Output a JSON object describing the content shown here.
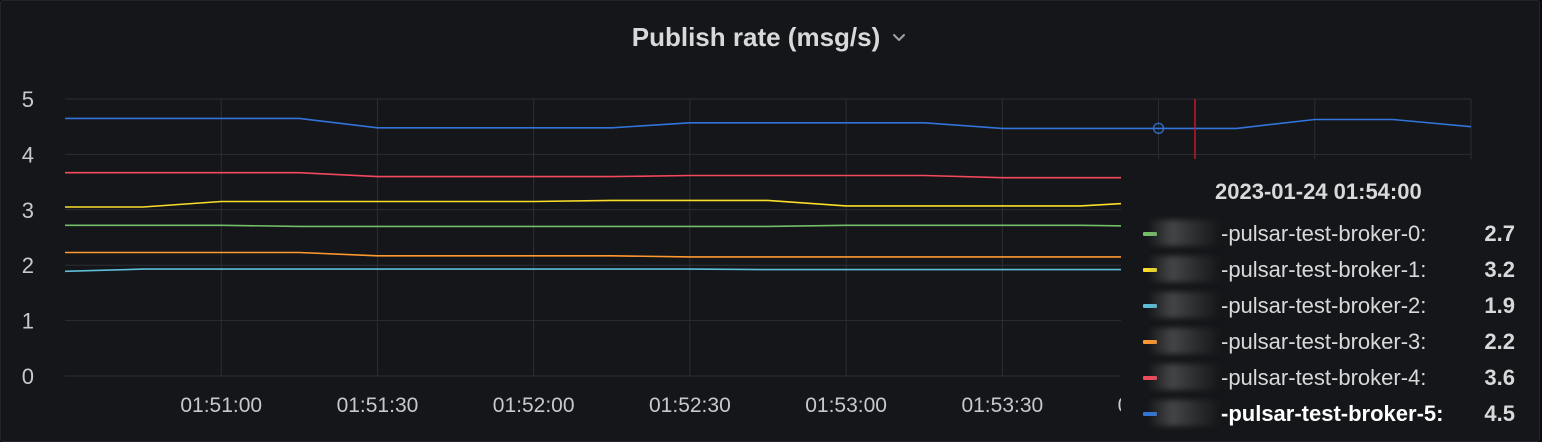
{
  "panel": {
    "title": "Publish rate (msg/s)"
  },
  "chart_data": {
    "type": "line",
    "title": "Publish rate (msg/s)",
    "ylim": [
      0,
      5
    ],
    "yticks": [
      "0",
      "1",
      "2",
      "3",
      "4",
      "5"
    ],
    "xlim": [
      "01:50:30",
      "01:55:00"
    ],
    "xtick_labels": [
      "01:51:00",
      "01:51:30",
      "01:52:00",
      "01:52:30",
      "01:53:00",
      "01:53:30",
      "01:54:00"
    ],
    "xtick_times": [
      "01:51:00",
      "01:51:30",
      "01:52:00",
      "01:52:30",
      "01:53:00",
      "01:53:30",
      "01:54:00",
      "01:54:30",
      "01:55:00"
    ],
    "x": [
      "01:50:30",
      "01:50:45",
      "01:51:00",
      "01:51:15",
      "01:51:30",
      "01:51:45",
      "01:52:00",
      "01:52:15",
      "01:52:30",
      "01:52:45",
      "01:53:00",
      "01:53:15",
      "01:53:30",
      "01:53:45",
      "01:54:00",
      "01:54:15",
      "01:54:30",
      "01:54:45",
      "01:55:00"
    ],
    "grid": true,
    "hover_time": "01:54:00",
    "cursor_time": "01:54:07",
    "series": [
      {
        "name": "-pulsar-test-broker-0",
        "color": "#73bf69",
        "values": [
          2.72,
          2.72,
          2.72,
          2.7,
          2.7,
          2.7,
          2.7,
          2.7,
          2.7,
          2.7,
          2.72,
          2.72,
          2.72,
          2.72,
          2.7,
          2.7,
          2.7,
          2.7,
          2.7
        ]
      },
      {
        "name": "-pulsar-test-broker-1",
        "color": "#fade2a",
        "values": [
          3.05,
          3.05,
          3.15,
          3.15,
          3.15,
          3.15,
          3.15,
          3.17,
          3.17,
          3.17,
          3.07,
          3.07,
          3.07,
          3.07,
          3.15,
          3.15,
          3.15,
          3.15,
          3.15
        ]
      },
      {
        "name": "-pulsar-test-broker-2",
        "color": "#5ebfd9",
        "values": [
          1.89,
          1.93,
          1.93,
          1.93,
          1.93,
          1.93,
          1.93,
          1.93,
          1.93,
          1.92,
          1.92,
          1.92,
          1.92,
          1.92,
          1.92,
          1.92,
          1.92,
          1.92,
          1.92
        ]
      },
      {
        "name": "-pulsar-test-broker-3",
        "color": "#ff9830",
        "values": [
          2.23,
          2.23,
          2.23,
          2.23,
          2.17,
          2.17,
          2.17,
          2.17,
          2.15,
          2.15,
          2.15,
          2.15,
          2.15,
          2.15,
          2.15,
          2.15,
          2.15,
          2.15,
          2.15
        ]
      },
      {
        "name": "-pulsar-test-broker-4",
        "color": "#f2495c",
        "values": [
          3.67,
          3.67,
          3.67,
          3.67,
          3.6,
          3.6,
          3.6,
          3.6,
          3.62,
          3.62,
          3.62,
          3.62,
          3.58,
          3.58,
          3.58,
          3.58,
          3.58,
          3.58,
          3.58
        ]
      },
      {
        "name": "-pulsar-test-broker-5",
        "color": "#3274d9",
        "values": [
          4.65,
          4.65,
          4.65,
          4.65,
          4.48,
          4.48,
          4.48,
          4.48,
          4.57,
          4.57,
          4.57,
          4.57,
          4.47,
          4.47,
          4.47,
          4.47,
          4.63,
          4.63,
          4.5
        ]
      }
    ]
  },
  "tooltip": {
    "time": "2023-01-24 01:54:00",
    "rows": [
      {
        "name": "-pulsar-test-broker-0:",
        "value": "2.7",
        "color": "#73bf69"
      },
      {
        "name": "-pulsar-test-broker-1:",
        "value": "3.2",
        "color": "#fade2a"
      },
      {
        "name": "-pulsar-test-broker-2:",
        "value": "1.9",
        "color": "#5ebfd9"
      },
      {
        "name": "-pulsar-test-broker-3:",
        "value": "2.2",
        "color": "#ff9830"
      },
      {
        "name": "-pulsar-test-broker-4:",
        "value": "3.6",
        "color": "#f2495c"
      },
      {
        "name": "-pulsar-test-broker-5:",
        "value": "4.5",
        "color": "#3274d9"
      }
    ],
    "active_index": 5
  }
}
